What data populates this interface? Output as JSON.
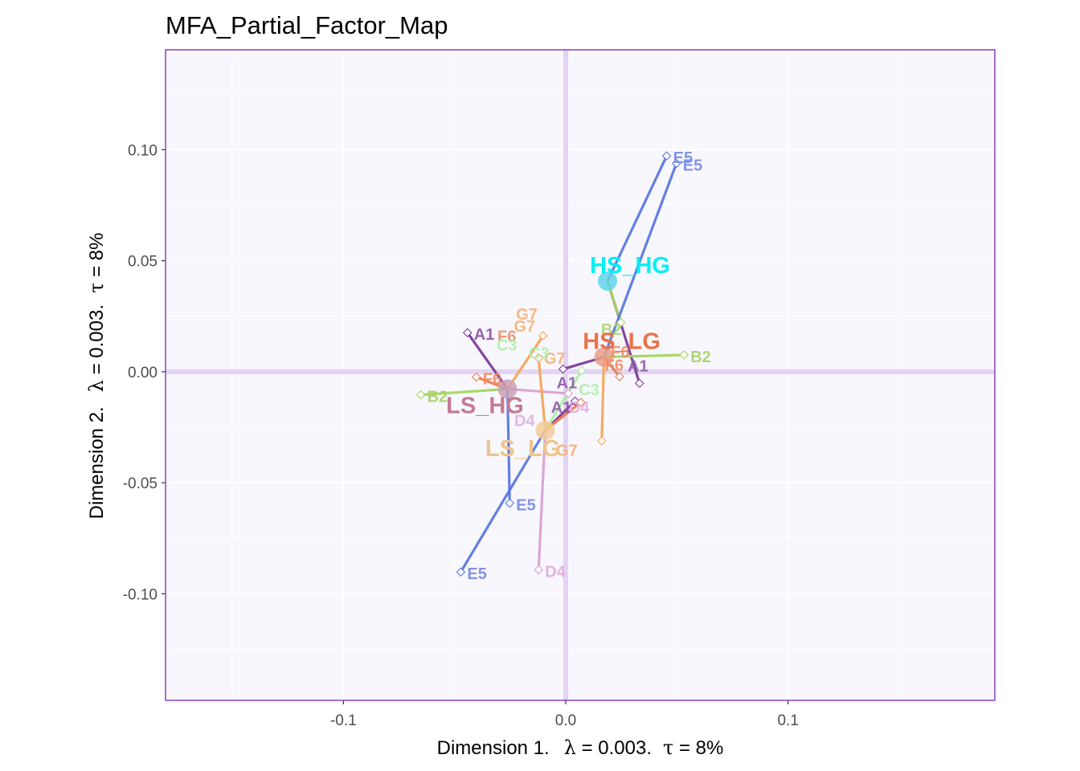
{
  "chart_data": {
    "type": "scatter",
    "title": "MFA_Partial_Factor_Map",
    "xlabel": {
      "prefix": "Dimension 1.",
      "lambda_value": "0.003",
      "tau_value": "8%"
    },
    "ylabel": {
      "prefix": "Dimension 2.",
      "lambda_value": "0.003",
      "tau_value": "8%"
    },
    "xlim": [
      -0.18,
      0.193
    ],
    "ylim": [
      -0.148,
      0.145
    ],
    "x_ticks": [
      -0.1,
      0.0,
      0.1
    ],
    "x_tick_labels": [
      "-0.1",
      "0.0",
      "0.1"
    ],
    "y_ticks": [
      -0.1,
      -0.05,
      0.0,
      0.05,
      0.1
    ],
    "y_tick_labels": [
      "-0.10",
      "-0.05",
      "0.00",
      "0.05",
      "0.10"
    ],
    "grid": true,
    "origin_lines": true,
    "colors": {
      "panel_background": "#f8f7fe",
      "panel_border": "#8a3fc6",
      "grid": "#ffffff",
      "origin_line": "#e4d3f3"
    },
    "group_means": [
      {
        "label": "HS_HG",
        "x": 0.0188,
        "y": 0.0408,
        "color": "#00f0f8",
        "point_color": "#63d3ea"
      },
      {
        "label": "HS_LG",
        "x": 0.0172,
        "y": 0.0066,
        "color": "#e8734a",
        "point_color": "#e8a088"
      },
      {
        "label": "LS_HG",
        "x": -0.0262,
        "y": -0.0078,
        "color": "#c47a94",
        "point_color": "#caa0b4"
      },
      {
        "label": "LS_LG",
        "x": -0.0092,
        "y": -0.0264,
        "color": "#f0c489",
        "point_color": "#f2cb98"
      }
    ],
    "partial_points": [
      {
        "label": "E5",
        "group": "HS_HG",
        "x": 0.0454,
        "y": 0.0972,
        "color": "#5a78e0",
        "label_color": "#7a8ee6",
        "show_label": true
      },
      {
        "label": "A1",
        "group": "HS_HG",
        "x": 0.0332,
        "y": -0.0052,
        "color": "#7d3c98",
        "label_color": "#8e5aa8",
        "show_label": false
      },
      {
        "label": "B2",
        "group": "HS_HG",
        "x": 0.0248,
        "y": 0.0222,
        "color": "#a4d65e",
        "label_color": "#aad36e",
        "show_label": false
      },
      {
        "label": "E5",
        "group": "HS_LG",
        "x": 0.0498,
        "y": 0.0938,
        "color": "#5a78e0",
        "label_color": "#7a8ee6",
        "show_label": true
      },
      {
        "label": "A1",
        "group": "HS_LG",
        "x": -0.0012,
        "y": 0.0012,
        "color": "#7d3c98",
        "label_color": "#8e5aa8",
        "show_label": false
      },
      {
        "label": "B2",
        "group": "HS_LG",
        "x": 0.0532,
        "y": 0.0076,
        "color": "#a4d65e",
        "label_color": "#aad36e",
        "show_label": true
      },
      {
        "label": "G7",
        "group": "HS_LG",
        "x": 0.0162,
        "y": -0.0312,
        "color": "#f5a55a",
        "label_color": "#f5b073",
        "show_label": false
      },
      {
        "label": "F6",
        "group": "HS_LG",
        "x": 0.0242,
        "y": -0.0022,
        "color": "#f07b4a",
        "label_color": "#f08c66",
        "show_label": false
      },
      {
        "label": "A1",
        "group": "LS_HG",
        "x": -0.0442,
        "y": 0.0176,
        "color": "#7d3c98",
        "label_color": "#8e5aa8",
        "show_label": true
      },
      {
        "label": "B2",
        "group": "LS_HG",
        "x": -0.0652,
        "y": -0.0104,
        "color": "#a4d65e",
        "label_color": "#aad36e",
        "show_label": true
      },
      {
        "label": "F6",
        "group": "LS_HG",
        "x": -0.0402,
        "y": -0.0024,
        "color": "#f07b4a",
        "label_color": "#f08c66",
        "show_label": true
      },
      {
        "label": "G7",
        "group": "LS_HG",
        "x": -0.0102,
        "y": 0.0162,
        "color": "#f5a55a",
        "label_color": "#f5b073",
        "show_label": false
      },
      {
        "label": "E5",
        "group": "LS_HG",
        "x": -0.0252,
        "y": -0.0592,
        "color": "#5a78e0",
        "label_color": "#7a8ee6",
        "show_label": true
      },
      {
        "label": "D4",
        "group": "LS_HG",
        "x": 0.0012,
        "y": -0.0098,
        "color": "#d9a0d6",
        "label_color": "#e0aede",
        "show_label": false
      },
      {
        "label": "E5",
        "group": "LS_LG",
        "x": -0.0472,
        "y": -0.0902,
        "color": "#5a78e0",
        "label_color": "#7a8ee6",
        "show_label": true
      },
      {
        "label": "D4",
        "group": "LS_LG",
        "x": -0.0122,
        "y": -0.0892,
        "color": "#d9a0d6",
        "label_color": "#e0aede",
        "show_label": true
      },
      {
        "label": "A1",
        "group": "LS_LG",
        "x": 0.0042,
        "y": -0.0132,
        "color": "#7d3c98",
        "label_color": "#8e5aa8",
        "show_label": false
      },
      {
        "label": "F6",
        "group": "LS_LG",
        "x": 0.0068,
        "y": -0.0138,
        "color": "#f07b4a",
        "label_color": "#f08c66",
        "show_label": false
      },
      {
        "label": "C3",
        "group": "LS_LG",
        "x": 0.0072,
        "y": 0.0006,
        "color": "#a8f0a0",
        "label_color": "#aef0a8",
        "show_label": false
      },
      {
        "label": "G7",
        "group": "LS_LG",
        "x": -0.0122,
        "y": 0.0062,
        "color": "#f5a55a",
        "label_color": "#f5b073",
        "show_label": false
      }
    ],
    "annotations": [
      {
        "text": "F6",
        "x": 0.0245,
        "y": 0.0065,
        "color": "#f08c66"
      },
      {
        "text": "F6",
        "x": 0.0218,
        "y": 0.0005,
        "color": "#f08c66"
      },
      {
        "text": "A1",
        "x": 0.0325,
        "y": 0.0002,
        "color": "#8e5aa8"
      },
      {
        "text": "B2",
        "x": 0.0205,
        "y": 0.0165,
        "color": "#aad36e"
      },
      {
        "text": "C3",
        "x": 0.0105,
        "y": -0.0105,
        "color": "#aef0a8"
      },
      {
        "text": "A1",
        "x": 0.0005,
        "y": -0.0075,
        "color": "#8e5aa8"
      },
      {
        "text": "A1",
        "x": -0.002,
        "y": -0.0185,
        "color": "#8e5aa8"
      },
      {
        "text": "D4",
        "x": 0.006,
        "y": -0.0185,
        "color": "#e0aede"
      },
      {
        "text": "G7",
        "x": -0.0175,
        "y": 0.0235,
        "color": "#f5b073"
      },
      {
        "text": "G7",
        "x": -0.0185,
        "y": 0.018,
        "color": "#f5b073"
      },
      {
        "text": "F6",
        "x": -0.0265,
        "y": 0.0135,
        "color": "#f08c66"
      },
      {
        "text": "C3",
        "x": -0.0265,
        "y": 0.0095,
        "color": "#aef0a8"
      },
      {
        "text": "G7",
        "x": -0.005,
        "y": 0.0035,
        "color": "#f5b073"
      },
      {
        "text": "C3",
        "x": -0.012,
        "y": 0.006,
        "color": "#aef0a8"
      },
      {
        "text": "D4",
        "x": -0.0185,
        "y": -0.0245,
        "color": "#e0aede"
      },
      {
        "text": "G7",
        "x": 0.0005,
        "y": -0.0378,
        "color": "#f5b073"
      }
    ]
  }
}
